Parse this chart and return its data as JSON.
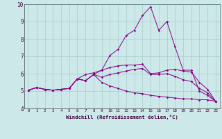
{
  "xlabel": "Windchill (Refroidissement éolien,°C)",
  "background_color": "#cce8e8",
  "line_color": "#880088",
  "grid_color": "#aacccc",
  "xlim": [
    -0.5,
    23.5
  ],
  "ylim": [
    4,
    10
  ],
  "xticks": [
    0,
    1,
    2,
    3,
    4,
    5,
    6,
    7,
    8,
    9,
    10,
    11,
    12,
    13,
    14,
    15,
    16,
    17,
    18,
    19,
    20,
    21,
    22,
    23
  ],
  "yticks": [
    4,
    5,
    6,
    7,
    8,
    9,
    10
  ],
  "series": {
    "line1": [
      5.05,
      5.2,
      5.1,
      5.05,
      5.1,
      5.15,
      5.7,
      5.6,
      5.95,
      6.2,
      6.35,
      6.45,
      6.5,
      6.5,
      6.55,
      6.0,
      6.05,
      6.2,
      6.25,
      6.15,
      6.1,
      5.5,
      5.1,
      4.4
    ],
    "line2": [
      5.05,
      5.2,
      5.1,
      5.05,
      5.1,
      5.15,
      5.7,
      5.95,
      6.05,
      6.2,
      7.05,
      7.4,
      8.2,
      8.5,
      9.35,
      9.85,
      8.5,
      9.0,
      7.55,
      6.2,
      6.2,
      5.0,
      4.75,
      4.4
    ],
    "line3": [
      5.05,
      5.2,
      5.1,
      5.05,
      5.1,
      5.15,
      5.7,
      5.6,
      5.95,
      5.8,
      5.95,
      6.05,
      6.15,
      6.25,
      6.3,
      5.95,
      5.95,
      6.0,
      5.85,
      5.65,
      5.55,
      5.15,
      4.9,
      4.4
    ],
    "line4": [
      5.05,
      5.2,
      5.1,
      5.05,
      5.1,
      5.15,
      5.7,
      5.6,
      5.95,
      5.5,
      5.3,
      5.15,
      5.0,
      4.9,
      4.85,
      4.75,
      4.7,
      4.65,
      4.6,
      4.55,
      4.55,
      4.5,
      4.5,
      4.4
    ]
  }
}
